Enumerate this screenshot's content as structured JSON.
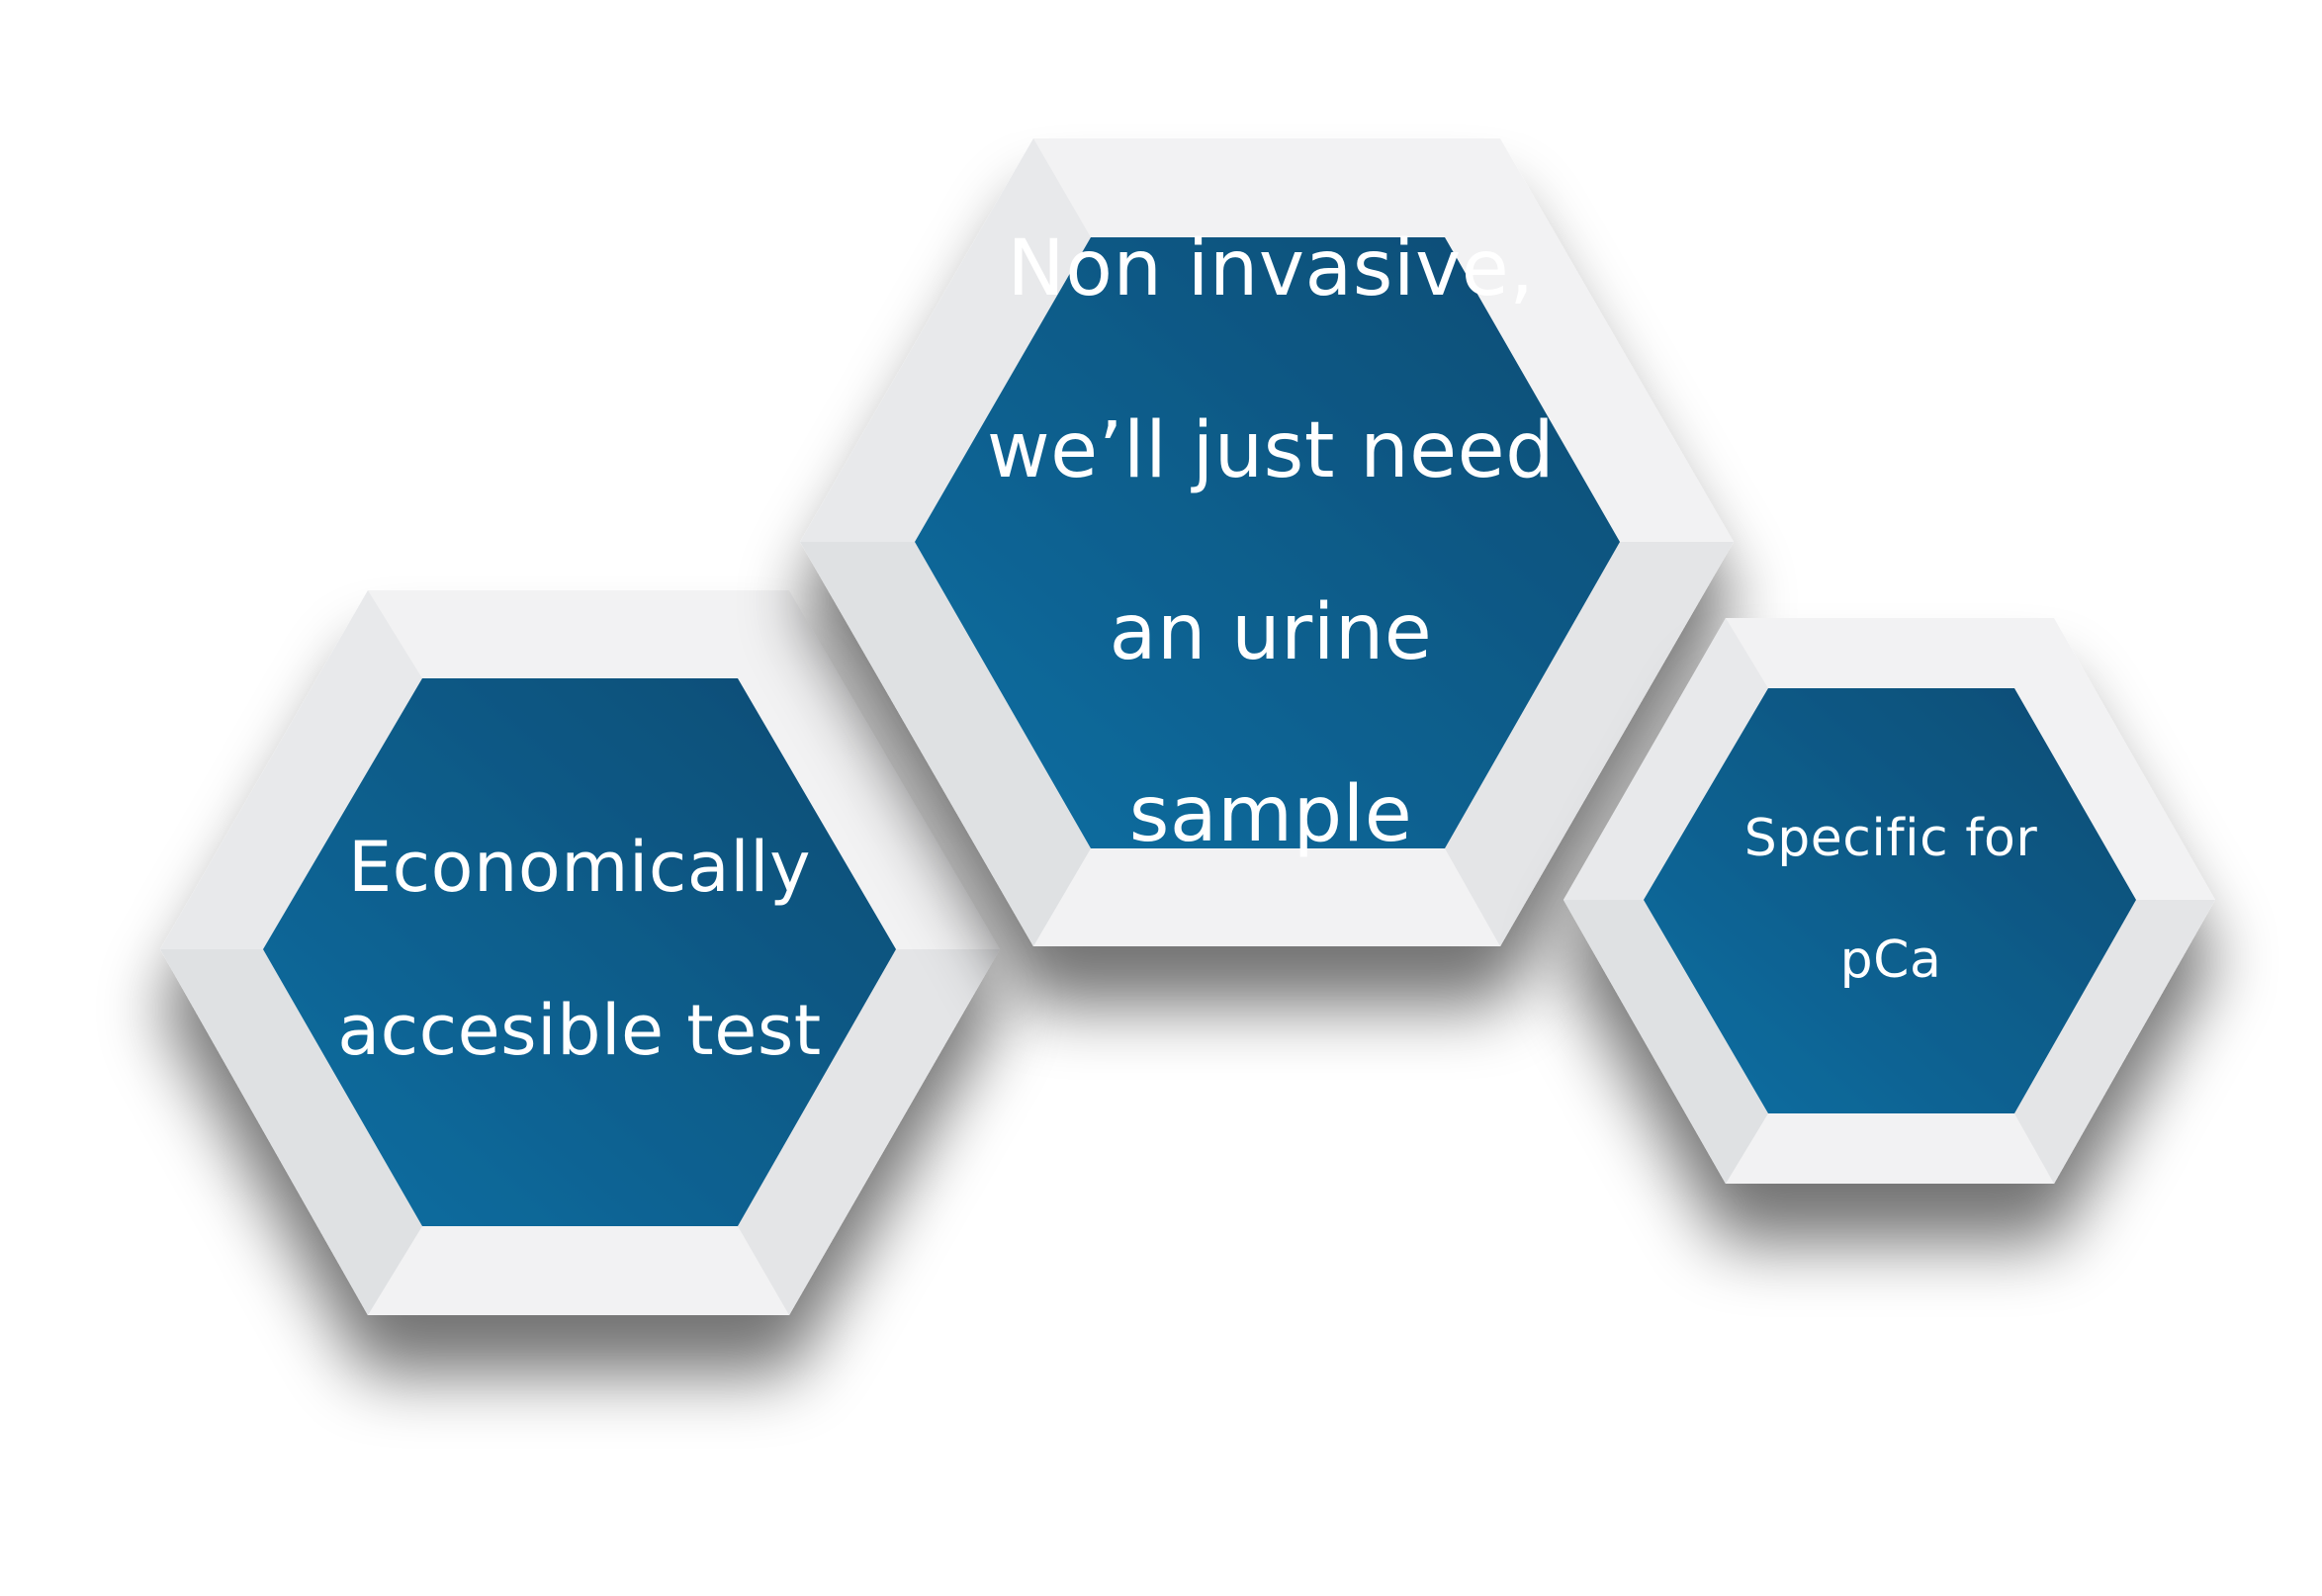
{
  "diagram": {
    "hexagons": [
      {
        "id": "left",
        "lines": [
          "Economically",
          "accesible test"
        ]
      },
      {
        "id": "center",
        "lines": [
          "Non invasive,",
          "we’ll just need",
          "an urine",
          "sample"
        ]
      },
      {
        "id": "right",
        "lines": [
          "Specific for",
          "pCa"
        ]
      }
    ],
    "colors": {
      "inner_dark": "#0a4b73",
      "inner_light": "#0d6fa3",
      "frame_light": "#f2f2f3",
      "frame_shade": "#e2e4e6",
      "shadow": "#000000"
    }
  }
}
